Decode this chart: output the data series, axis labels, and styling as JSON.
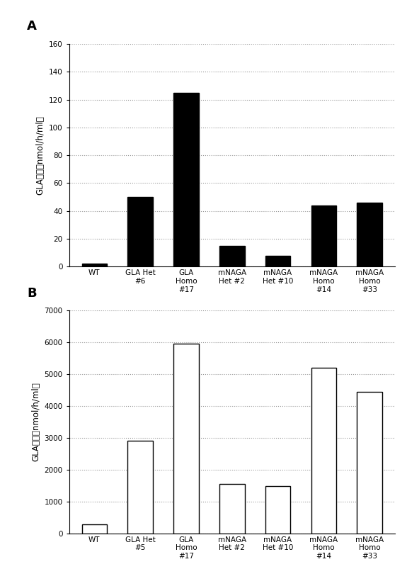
{
  "panel_A": {
    "categories": [
      "WT",
      "GLA Het\n#6",
      "GLA\nHomo\n#17",
      "mNAGA\nHet #2",
      "mNAGA\nHet #10",
      "mNAGA\nHomo\n#14",
      "mNAGA\nHomo\n#33"
    ],
    "values": [
      2,
      50,
      125,
      15,
      8,
      44,
      46
    ],
    "bar_color": "#000000",
    "ylabel": "GLA活性（nmol/h/ml）",
    "ylim": [
      0,
      160
    ],
    "yticks": [
      0,
      20,
      40,
      60,
      80,
      100,
      120,
      140,
      160
    ],
    "label": "A"
  },
  "panel_B": {
    "categories": [
      "WT",
      "GLA Het\n#5",
      "GLA\nHomo\n#17",
      "mNAGA\nHet #2",
      "mNAGA\nHet #10",
      "mNAGA\nHomo\n#14",
      "mNAGA\nHomo\n#33"
    ],
    "values": [
      270,
      2900,
      5950,
      1550,
      1480,
      5200,
      4450
    ],
    "bar_color": "#ffffff",
    "bar_edgecolor": "#000000",
    "ylabel": "GLA活性（nmol/h/ml）",
    "ylim": [
      0,
      7000
    ],
    "yticks": [
      0,
      1000,
      2000,
      3000,
      4000,
      5000,
      6000,
      7000
    ],
    "label": "B"
  },
  "figure_bg": "#ffffff",
  "font_size_tick": 7.5,
  "font_size_label": 8.5,
  "font_size_panel_label": 13
}
